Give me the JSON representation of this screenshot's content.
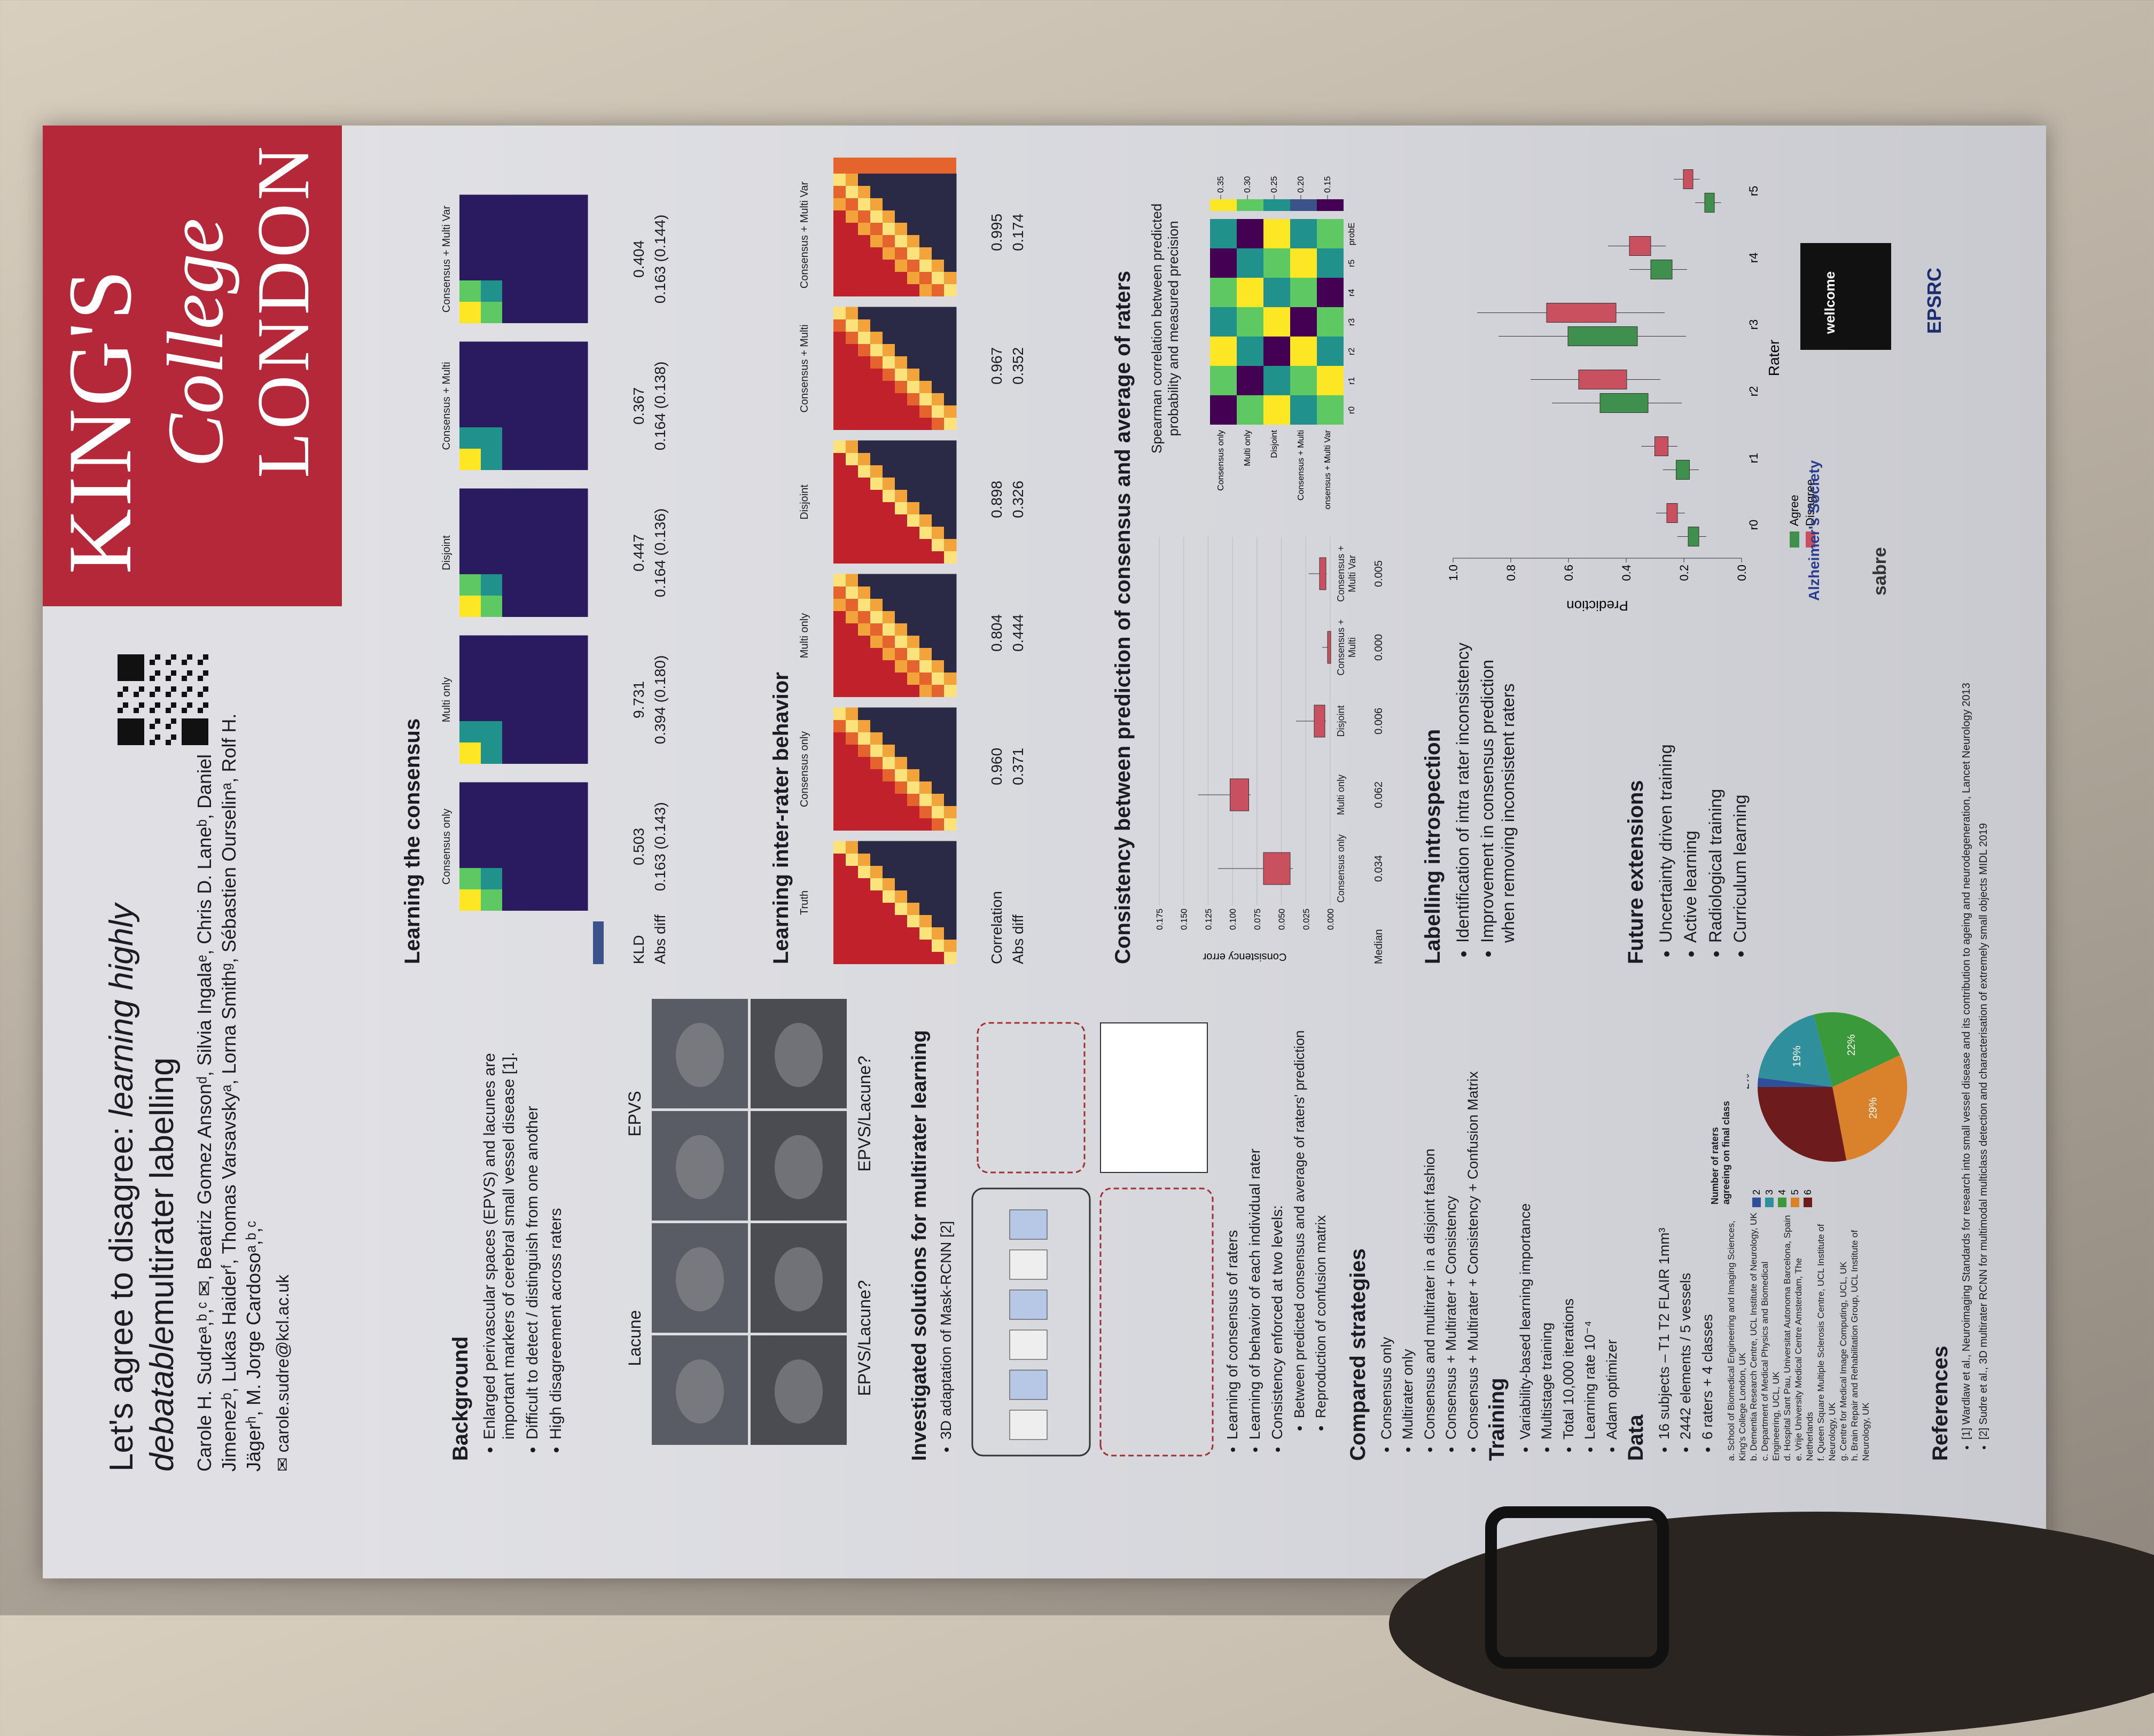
{
  "header": {
    "title": "Let's agree to disagree: ",
    "title_emphasis": "learning highly debatable",
    "title_end": "multirater labelling",
    "authors": "Carole H. Sudreᵃ,ᵇ,ᶜ ✉, Beatriz Gomez Ansonᵈ, Silvia Ingalaᵉ, Chris D. Laneᵇ, Daniel Jimenezᵇ, Lukas Haiderᶠ, Thomas Varsavskyᵃ, Lorna Smithᵍ, Sébastien Ourselinᵃ, Rolf H. Jägerʰ, M. Jorge Cardosoᵃ,ᵇ,ᶜ",
    "email": "✉ carole.sudre@kcl.ac.uk",
    "logo": [
      "KING'S",
      "College",
      "LONDON"
    ]
  },
  "background": {
    "heading": "Background",
    "bullets": [
      "Enlarged perivascular spaces (EPVS) and lacunes are important markers of cerebral small vessel disease [1].",
      "Difficult to detect / distinguish from one another",
      "High disagreement across raters"
    ],
    "image_labels": [
      "Lacune",
      "EPVS",
      "EPVS/Lacune?",
      "EPVS/Lacune?"
    ]
  },
  "methods": {
    "heading": "Investigated  solutions for multirater learning",
    "bullets": [
      "3D adaptation of Mask-RCNN [2]",
      "Learning of consensus of raters",
      "Learning of behavior of each individual rater",
      "Consistency enforced at two levels:"
    ],
    "sub_bullets": [
      "Between predicted consensus and average of raters' prediction",
      "Reproduction of confusion matrix"
    ]
  },
  "strategies": {
    "heading": "Compared strategies",
    "bullets": [
      "Consensus only",
      "Multirater only",
      "Consensus and multirater in a disjoint fashion",
      "Consensus + Multirater + Consistency",
      "Consensus + Multirater + Consistency + Confusion Matrix"
    ]
  },
  "training": {
    "heading": "Training",
    "bullets": [
      "Variability-based learning importance",
      "Multistage training",
      "Total 10,000 iterations",
      "Learning rate 10⁻⁴",
      "Adam optimizer"
    ]
  },
  "dataset": {
    "heading": "Data",
    "bullets": [
      "16 subjects – T1 T2 FLAIR 1mm³",
      "2442 elements / 5 vessels",
      "6 raters + 4 classes"
    ],
    "pie": {
      "title": "Number of raters agreeing on final class",
      "categories": [
        "2",
        "3",
        "4",
        "5",
        "6"
      ],
      "values": [
        2,
        19,
        22,
        29,
        28
      ],
      "value_labels": [
        "2%",
        "19%",
        "22%",
        "29%",
        null
      ],
      "colors": [
        "#2f4f9a",
        "#2f8f9a",
        "#3a9a3a",
        "#d9822b",
        "#6e1b1b"
      ]
    }
  },
  "affiliations": [
    "a. School of Biomedical Engineering and Imaging Sciences, King's College London, UK",
    "b. Dementia Research Centre, UCL Institute of Neurology, UK",
    "c. Department of Medical Physics and Biomedical Engineering, UCL, UK",
    "d. Hospital Sant Pau, Universitat Autonoma Barcelona, Spain",
    "e. Vrije University Medical Centre Amsterdam, The Netherlands",
    "f. Queen Square Multiple Sclerosis Centre, UCL Institute of Neurology, UK",
    "g. Centre for Medical Image Computing, UCL, UK",
    "h. Brain Repair and Rehabilitation Group, UCL Institute of Neurology, UK"
  ],
  "consensus": {
    "heading": "Learning the consensus",
    "columns": [
      "Consensus only",
      "Multi only",
      "Disjoint",
      "Consensus + Multi",
      "Consensus + Multi Var"
    ],
    "rows": [
      {
        "label": "KLD",
        "values": [
          "0.503",
          "9.731",
          "0.447",
          "0.367",
          "0.404"
        ]
      },
      {
        "label": "Abs diff",
        "values": [
          "0.163 (0.143)",
          "0.394 (0.180)",
          "0.164 (0.136)",
          "0.164 (0.138)",
          "0.163 (0.144)"
        ]
      }
    ]
  },
  "inter_rater": {
    "heading": "Learning inter-rater behavior",
    "columns": [
      "Truth",
      "Consensus only",
      "Multi only",
      "Disjoint",
      "Consensus + Multi",
      "Consensus + Multi Var"
    ],
    "rows": [
      {
        "label": "Correlation",
        "values": [
          "0.960",
          "0.804",
          "0.898",
          "0.967",
          "0.995"
        ]
      },
      {
        "label": "Abs diff",
        "values": [
          "0.371",
          "0.444",
          "0.326",
          "0.352",
          "0.174"
        ]
      }
    ]
  },
  "consistency": {
    "heading": "Consistency between prediction of consensus and average of raters",
    "y_label": "Consistency error",
    "ylim": [
      0,
      0.175
    ],
    "yticks": [
      {
        "value": 0,
        "label": "0.000"
      },
      0.025,
      {
        "value": 0.05,
        "label": "0.050"
      },
      0.075,
      {
        "value": 0.1,
        "label": "0.100"
      },
      0.125,
      {
        "value": 0.15,
        "label": "0.150"
      },
      0.175
    ],
    "columns": [
      "Consensus only",
      "Multi only",
      "Disjoint",
      "Consensus + Multi",
      "Consensus + Multi Var"
    ],
    "median_label": "Median",
    "medians": [
      "0.034",
      "0.062",
      "0.006",
      "0.000",
      "0.005"
    ],
    "spearman_title": "Spearman correlation between predicted probability and measured precision",
    "spearman_columns": [
      "r0",
      "r1",
      "r2",
      "r3",
      "r4",
      "r5",
      "probE"
    ],
    "colorbar_lim": [
      0.12,
      0.37
    ],
    "colorbar_ticks": [
      0.15,
      {
        "value": 0.2,
        "label": "0.20"
      },
      0.25,
      {
        "value": 0.3,
        "label": "0.30"
      },
      0.35
    ]
  },
  "introspection": {
    "heading": "Labelling introspection",
    "bullets": [
      "Identification of intra rater inconsistency",
      "Improvement in consensus prediction when removing inconsistent raters"
    ],
    "y_label": "Prediction",
    "x_label": "Rater",
    "categories": [
      "r0",
      "r1",
      "r2",
      "r3",
      "r4",
      "r5"
    ],
    "ylim": [
      0,
      1
    ],
    "yticks": [
      {
        "value": 0,
        "label": "0.0"
      },
      0.2,
      0.4,
      0.6,
      0.8,
      {
        "value": 1,
        "label": "1.0"
      }
    ],
    "legend": [
      "Agree",
      "Disagree"
    ]
  },
  "future": {
    "heading": "Future extensions",
    "bullets": [
      "Uncertainty driven training",
      "Active learning",
      "Radiological training",
      "Curriculum learning"
    ]
  },
  "references": {
    "heading": "References",
    "items": [
      "[1]  Wardlaw et al., Neuroimaging Standards for research into small vessel disease and its contribution to ageing and neurodegeneration, Lancet Neurology 2013",
      "[2]  Sudre et al., 3D multirater RCNN for multimodal multiclass detection and characterisation of extremely small objects MIDL 2019"
    ]
  },
  "logos": [
    "Alzheimer's Society",
    "sabre",
    "wellcome",
    "EPSRC"
  ]
}
